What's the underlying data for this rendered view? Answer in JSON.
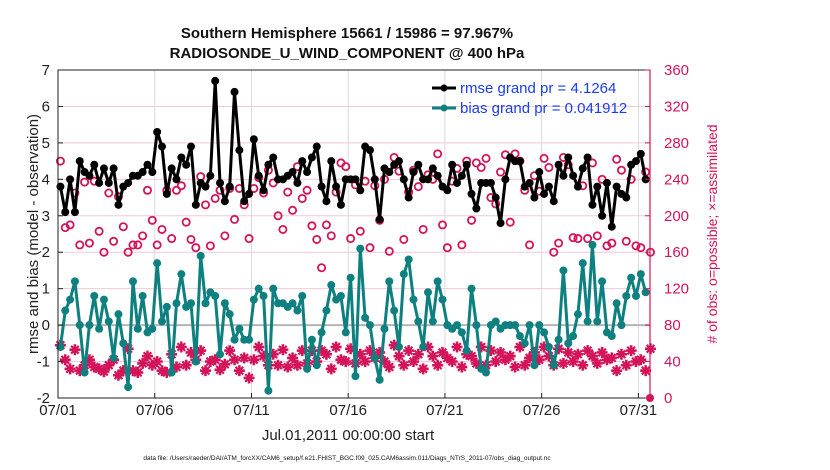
{
  "chart_data": {
    "type": "line",
    "title": "Southern Hemisphere 15661 / 15986 = 97.967%",
    "subtitle": "RADIOSONDE_U_WIND_COMPONENT @ 400 hPa",
    "xlabel": "Jul.01,2011 00:00:00 start",
    "ylabel": "rmse and bias (model - observation)",
    "ylabel_right": "# of obs: o=possible; ×=assimilated",
    "footnote": "data file: /Users/raeder/DAI/ATM_forcXX/CAM6_setup/f.e21.FHIST_BGC.f09_025.CAM6assim.011/Diags_NTrS_2011-07/obs_diag_output.nc",
    "x_ticks": [
      "07/01",
      "07/06",
      "07/11",
      "07/16",
      "07/21",
      "07/26",
      "07/31"
    ],
    "x_tick_days": [
      0,
      5,
      10,
      15,
      20,
      25,
      30
    ],
    "xlim_days": [
      0,
      30.6
    ],
    "ylim": [
      -2,
      7
    ],
    "y_ticks": [
      "-2",
      "-1",
      "0",
      "1",
      "2",
      "3",
      "4",
      "5",
      "6",
      "7"
    ],
    "ylim_right": [
      0,
      360
    ],
    "y_ticks_right": [
      "0",
      "40",
      "80",
      "120",
      "160",
      "200",
      "240",
      "280",
      "320",
      "360"
    ],
    "grid": true,
    "legend_position": "top-right",
    "x_step_days": 0.25,
    "series": [
      {
        "name": "rmse grand pr = 4.1264",
        "color": "#000000",
        "axis": "left",
        "values": [
          3.8,
          3.1,
          4.0,
          3.1,
          4.5,
          4.2,
          4.1,
          4.4,
          3.9,
          4.3,
          3.9,
          4.3,
          3.3,
          3.8,
          3.9,
          4.1,
          4.1,
          4.2,
          4.4,
          4.2,
          5.3,
          4.9,
          3.6,
          4.3,
          4.0,
          4.6,
          4.4,
          4.9,
          3.3,
          3.9,
          3.8,
          4.1,
          6.7,
          3.9,
          3.4,
          3.8,
          6.4,
          4.8,
          3.4,
          3.6,
          5.1,
          4.1,
          3.7,
          4.4,
          4.6,
          4.0,
          4.0,
          4.1,
          4.2,
          3.9,
          4.5,
          4.2,
          4.6,
          4.9,
          3.8,
          3.4,
          4.5,
          3.8,
          3.3,
          4.0,
          4.0,
          4.0,
          3.7,
          4.9,
          4.8,
          4.0,
          2.9,
          4.3,
          4.2,
          4.4,
          4.5,
          4.0,
          3.5,
          4.2,
          4.4,
          4.0,
          4.0,
          4.3,
          4.1,
          3.8,
          3.7,
          4.4,
          3.9,
          4.1,
          4.4,
          3.6,
          3.2,
          3.9,
          3.9,
          3.9,
          3.5,
          2.8,
          4.0,
          4.6,
          4.5,
          4.5,
          3.8,
          3.9,
          3.5,
          4.2,
          3.6,
          3.8,
          3.4,
          4.4,
          4.1,
          4.6,
          4.1,
          3.8,
          4.3,
          4.6,
          3.3,
          3.8,
          3.0,
          3.9,
          2.7,
          3.8,
          3.6,
          3.5,
          4.4,
          4.5,
          4.7,
          4.0,
          4.1,
          3.7,
          3.9,
          4.0,
          4.0,
          4.2,
          2.9
        ]
      },
      {
        "name": "bias grand pr = 0.041912",
        "color": "#0e8080",
        "axis": "left",
        "values": [
          -0.6,
          0.4,
          0.7,
          1.2,
          0.0,
          -1.3,
          0.0,
          0.8,
          -0.1,
          0.7,
          0.1,
          -0.9,
          0.3,
          -0.5,
          -1.7,
          1.2,
          -0.1,
          0.8,
          -0.2,
          -0.1,
          1.7,
          0.1,
          0.5,
          -1.3,
          0.6,
          1.4,
          0.5,
          0.6,
          -1.0,
          1.9,
          0.6,
          0.9,
          0.8,
          -0.8,
          0.6,
          0.3,
          -0.4,
          -0.1,
          -0.4,
          -0.4,
          0.7,
          1.0,
          0.8,
          -1.8,
          1.0,
          0.6,
          0.6,
          0.5,
          0.6,
          0.4,
          0.8,
          -1.2,
          -0.4,
          -1.1,
          -0.2,
          0.4,
          1.1,
          0.7,
          0.8,
          -0.2,
          1.3,
          -1.4,
          2.1,
          0.2,
          0.0,
          -0.9,
          -1.5,
          -0.1,
          1.2,
          0.4,
          -0.6,
          1.4,
          1.8,
          0.7,
          0.1,
          -0.6,
          0.9,
          0.1,
          1.2,
          0.7,
          0.0,
          -0.1,
          0.0,
          -0.2,
          -0.7,
          1.0,
          0.0,
          -1.2,
          -1.3,
          0.0,
          0.1,
          -0.1,
          0.0,
          0.0,
          0.0,
          -0.3,
          -0.5,
          0.0,
          -1.1,
          0.0,
          -0.2,
          -0.6,
          -1.1,
          -0.4,
          1.5,
          -0.5,
          -0.3,
          0.3,
          1.7,
          0.1,
          2.2,
          0.1,
          1.2,
          -0.2,
          -0.3,
          0.6,
          0.0,
          0.8,
          1.3,
          0.8,
          1.4,
          0.9,
          0.9,
          1.1,
          0.2,
          -0.4,
          -0.2,
          0.2,
          0.4,
          0.4,
          1.5,
          0.2,
          0.4,
          0.0,
          1.9
        ]
      },
      {
        "name": "obs possible (o)",
        "color": "#d4145a",
        "axis": "right",
        "marker": "o",
        "values": [
          260,
          187,
          190,
          225,
          168,
          237,
          170,
          238,
          183,
          160,
          225,
          172,
          221,
          188,
          160,
          168,
          168,
          178,
          228,
          195,
          168,
          185,
          228,
          175,
          228,
          233,
          193,
          174,
          165,
          243,
          212,
          167,
          219,
          228,
          178,
          230,
          196,
          230,
          212,
          175,
          230,
          242,
          225,
          250,
          236,
          200,
          185,
          226,
          206,
          254,
          219,
          228,
          189,
          174,
          143,
          190,
          178,
          226,
          258,
          254,
          175,
          234,
          183,
          238,
          165,
          233,
          195,
          240,
          161,
          264,
          249,
          174,
          226,
          250,
          232,
          185,
          245,
          240,
          268,
          190,
          165,
          238,
          252,
          168,
          260,
          195,
          258,
          253,
          263,
          220,
          213,
          248,
          267,
          193,
          268,
          260,
          228,
          168,
          244,
          227,
          263,
          253,
          160,
          170,
          264,
          256,
          176,
          175,
          233,
          175,
          258,
          178,
          240,
          167,
          170,
          262,
          250,
          172,
          240,
          167,
          165,
          248,
          160,
          168,
          248,
          168,
          247,
          167,
          176
        ]
      },
      {
        "name": "obs assimilated (×)",
        "color": "#d4145a",
        "axis": "right",
        "marker": "*",
        "values": [
          58,
          42,
          32,
          53,
          30,
          36,
          42,
          34,
          32,
          29,
          36,
          42,
          25,
          30,
          54,
          30,
          28,
          38,
          46,
          36,
          40,
          30,
          28,
          48,
          34,
          56,
          36,
          50,
          42,
          52,
          30,
          40,
          42,
          31,
          37,
          52,
          42,
          30,
          44,
          22,
          42,
          56,
          46,
          36,
          48,
          36,
          53,
          34,
          44,
          36,
          52,
          38,
          52,
          40,
          52,
          48,
          32,
          56,
          42,
          40,
          54,
          38,
          48,
          40,
          52,
          44,
          50,
          40,
          34,
          58,
          46,
          36,
          52,
          40,
          48,
          32,
          56,
          46,
          36,
          50,
          44,
          40,
          56,
          34,
          48,
          46,
          38,
          56,
          36,
          52,
          40,
          50,
          42,
          46,
          34,
          56,
          36,
          44,
          50,
          42,
          56,
          46,
          36,
          54,
          38,
          50,
          40,
          48,
          36,
          52,
          46,
          38,
          50,
          42,
          44,
          30,
          48,
          36,
          52,
          40,
          42,
          30,
          54,
          38,
          36,
          46,
          32,
          44,
          0
        ]
      }
    ]
  }
}
